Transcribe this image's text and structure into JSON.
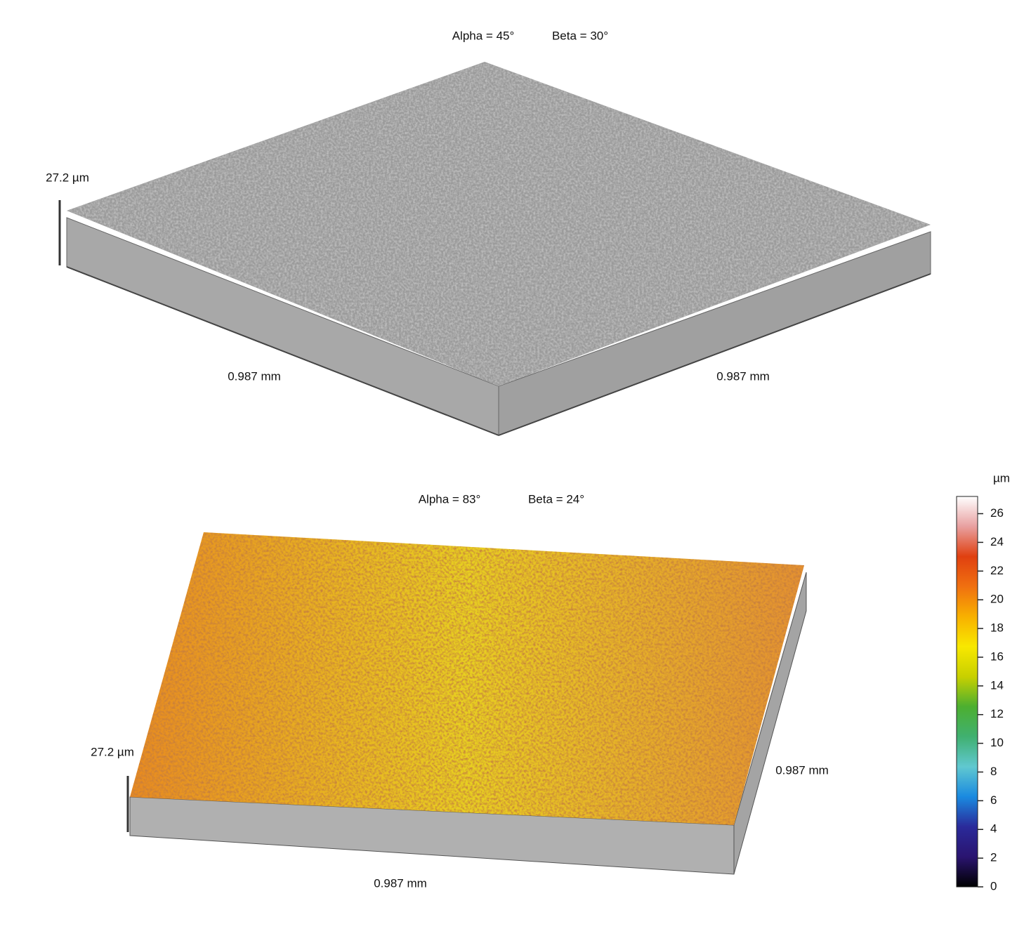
{
  "panels": [
    {
      "alpha": "Alpha = 45°",
      "beta": "Beta = 30°",
      "height_label": "27.2 µm",
      "x_label": "0.987 mm",
      "y_label": "0.987 mm"
    },
    {
      "alpha": "Alpha = 83°",
      "beta": "Beta = 24°",
      "height_label": "27.2 µm",
      "x_label": "0.987 mm",
      "y_label": "0.987 mm"
    }
  ],
  "colorbar": {
    "unit": "µm",
    "ylim": [
      0,
      27.2
    ],
    "ticks": [
      0,
      2,
      4,
      6,
      8,
      10,
      12,
      14,
      16,
      18,
      20,
      22,
      24,
      26
    ],
    "colors": [
      "#000000",
      "#2a1470",
      "#2a2a9a",
      "#1a8ae0",
      "#60c8d0",
      "#40b070",
      "#4caf30",
      "#c8d000",
      "#f8e800",
      "#f8b000",
      "#f07010",
      "#e04010",
      "#e8a0a0",
      "#ffffff"
    ]
  }
}
